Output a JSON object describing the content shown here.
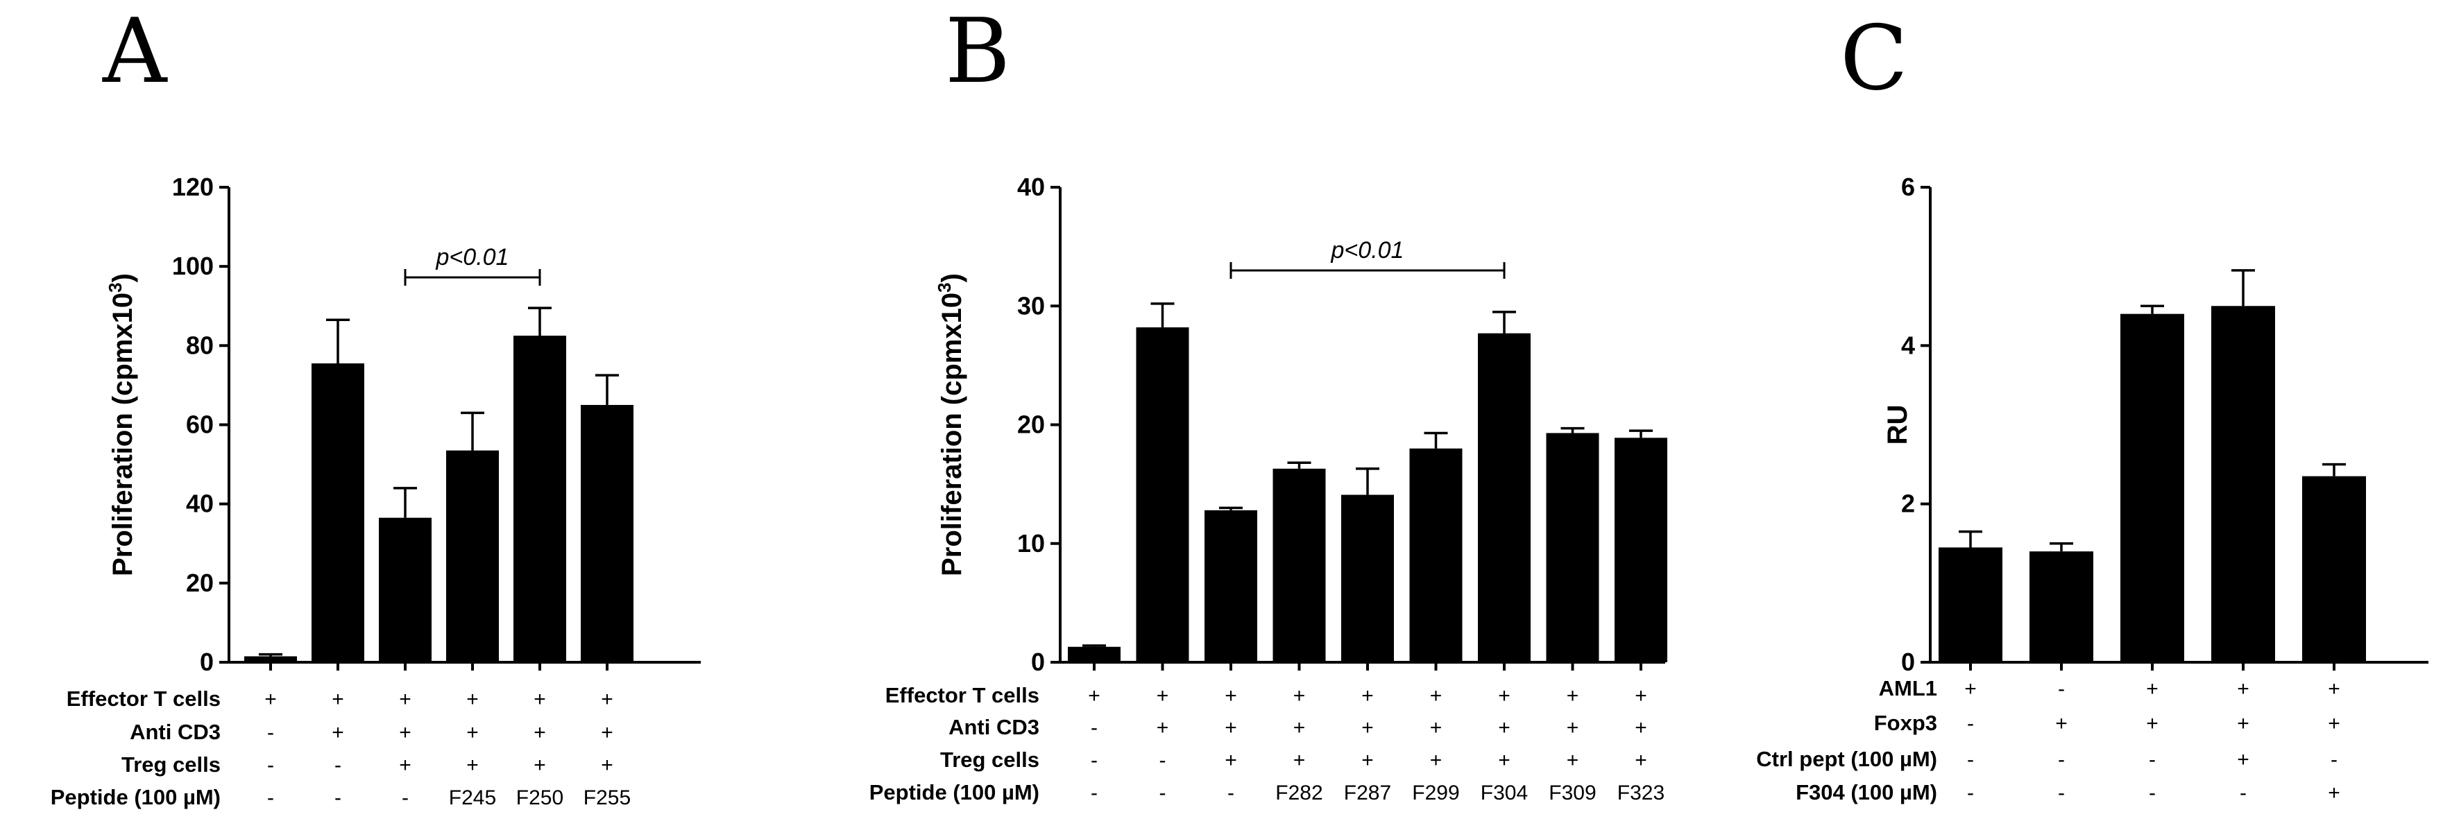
{
  "chart_data": [
    {
      "type": "bar",
      "panel": "A",
      "ylabel": "Proliferation (cpmx10",
      "ylabel_sup": "3",
      "ylabel_end": ")",
      "ylim": [
        0,
        120
      ],
      "yticks": [
        "0",
        "20",
        "40",
        "60",
        "80",
        "100",
        "120"
      ],
      "values": [
        1.5,
        75.5,
        36.5,
        53.5,
        82.5,
        65
      ],
      "errors": [
        0.5,
        11,
        7.5,
        9.5,
        7,
        7.5
      ],
      "significance": {
        "label": "p<0.01",
        "from": 2,
        "to": 4
      },
      "rows": [
        {
          "label": "Effector T cells",
          "cells": [
            "+",
            "+",
            "+",
            "+",
            "+",
            "+"
          ]
        },
        {
          "label": "Anti CD3",
          "cells": [
            "-",
            "+",
            "+",
            "+",
            "+",
            "+"
          ]
        },
        {
          "label": "Treg cells",
          "cells": [
            "-",
            "-",
            "+",
            "+",
            "+",
            "+"
          ]
        },
        {
          "label": "Peptide (100 µM)",
          "cells": [
            "-",
            "-",
            "-",
            "F245",
            "F250",
            "F255"
          ]
        }
      ]
    },
    {
      "type": "bar",
      "panel": "B",
      "ylabel": "Proliferation (cpmx10",
      "ylabel_sup": "3",
      "ylabel_end": ")",
      "ylim": [
        0,
        40
      ],
      "yticks": [
        "0",
        "10",
        "20",
        "30",
        "40"
      ],
      "values": [
        1.3,
        28.2,
        12.8,
        16.3,
        14.1,
        18,
        27.7,
        19.3,
        18.9
      ],
      "errors": [
        0.1,
        2,
        0.2,
        0.5,
        2.2,
        1.3,
        1.8,
        0.4,
        0.6
      ],
      "significance": {
        "label": "p<0.01",
        "from": 2,
        "to": 6
      },
      "rows": [
        {
          "label": "Effector T cells",
          "cells": [
            "+",
            "+",
            "+",
            "+",
            "+",
            "+",
            "+",
            "+",
            "+"
          ]
        },
        {
          "label": "Anti CD3",
          "cells": [
            "-",
            "+",
            "+",
            "+",
            "+",
            "+",
            "+",
            "+",
            "+"
          ]
        },
        {
          "label": "Treg cells",
          "cells": [
            "-",
            "-",
            "+",
            "+",
            "+",
            "+",
            "+",
            "+",
            "+"
          ]
        },
        {
          "label": "Peptide (100 µM)",
          "cells": [
            "-",
            "-",
            "-",
            "F282",
            "F287",
            "F299",
            "F304",
            "F309",
            "F323"
          ]
        }
      ]
    },
    {
      "type": "bar",
      "panel": "C",
      "ylabel": "RU",
      "ylabel_sup": "",
      "ylabel_end": "",
      "ylim": [
        0,
        6
      ],
      "yticks": [
        "0",
        "2",
        "4",
        "6"
      ],
      "values": [
        1.45,
        1.4,
        4.4,
        4.5,
        2.35
      ],
      "errors": [
        0.2,
        0.1,
        0.1,
        0.45,
        0.15
      ],
      "significance": null,
      "rows": [
        {
          "label": "AML1",
          "cells": [
            "+",
            "-",
            "+",
            "+",
            "+"
          ]
        },
        {
          "label": "Foxp3",
          "cells": [
            "-",
            "+",
            "+",
            "+",
            "+"
          ]
        },
        {
          "label": "Ctrl pept (100 µM)",
          "cells": [
            "-",
            "-",
            "-",
            "+",
            "-"
          ]
        },
        {
          "label": "F304  (100 µM)",
          "cells": [
            "-",
            "-",
            "-",
            "-",
            "+"
          ]
        }
      ]
    }
  ]
}
